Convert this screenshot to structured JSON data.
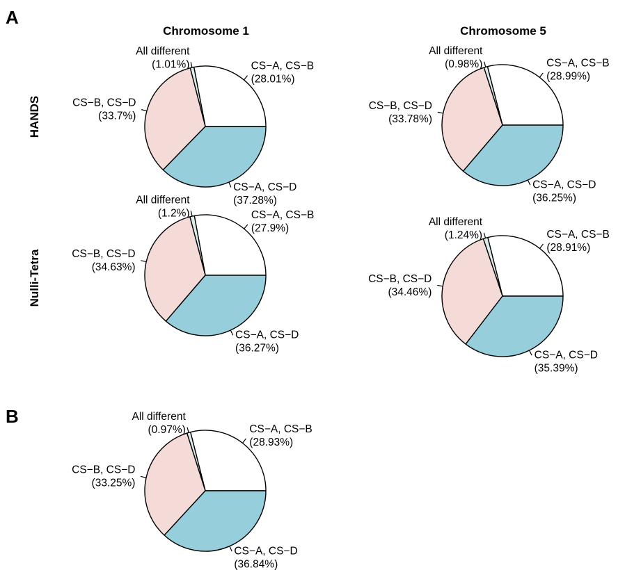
{
  "figure": {
    "panel_a_label": "A",
    "panel_b_label": "B",
    "column_titles": [
      "Chromosome 1",
      "Chromosome 5"
    ],
    "row_titles": [
      "HANDS",
      "Nulli-Tetra"
    ]
  },
  "colors": {
    "CS-A, CS-B": "#ffffff",
    "All different": "#dcecec",
    "CS-B, CS-D": "#f5dbd8",
    "CS-A, CS-D": "#97cedc"
  },
  "chart_data": [
    {
      "type": "pie",
      "panel": "A",
      "row": "HANDS",
      "column": "Chromosome 1",
      "slices": [
        {
          "label": "CS−A, CS−B",
          "value": 28.01,
          "value_text": "(28.01%)"
        },
        {
          "label": "All different",
          "value": 1.01,
          "value_text": "(1.01%)"
        },
        {
          "label": "CS−B, CS−D",
          "value": 33.7,
          "value_text": "(33.7%)"
        },
        {
          "label": "CS−A, CS−D",
          "value": 37.28,
          "value_text": "(37.28%)"
        }
      ]
    },
    {
      "type": "pie",
      "panel": "A",
      "row": "HANDS",
      "column": "Chromosome 5",
      "slices": [
        {
          "label": "CS−A, CS−B",
          "value": 28.99,
          "value_text": "(28.99%)"
        },
        {
          "label": "All different",
          "value": 0.98,
          "value_text": "(0.98%)"
        },
        {
          "label": "CS−B, CS−D",
          "value": 33.78,
          "value_text": "(33.78%)"
        },
        {
          "label": "CS−A, CS−D",
          "value": 36.25,
          "value_text": "(36.25%)"
        }
      ]
    },
    {
      "type": "pie",
      "panel": "A",
      "row": "Nulli-Tetra",
      "column": "Chromosome 1",
      "slices": [
        {
          "label": "CS−A, CS−B",
          "value": 27.9,
          "value_text": "(27.9%)"
        },
        {
          "label": "All different",
          "value": 1.2,
          "value_text": "(1.2%)"
        },
        {
          "label": "CS−B, CS−D",
          "value": 34.63,
          "value_text": "(34.63%)"
        },
        {
          "label": "CS−A, CS−D",
          "value": 36.27,
          "value_text": "(36.27%)"
        }
      ]
    },
    {
      "type": "pie",
      "panel": "A",
      "row": "Nulli-Tetra",
      "column": "Chromosome 5",
      "slices": [
        {
          "label": "CS−A, CS−B",
          "value": 28.91,
          "value_text": "(28.91%)"
        },
        {
          "label": "All different",
          "value": 1.24,
          "value_text": "(1.24%)"
        },
        {
          "label": "CS−B, CS−D",
          "value": 34.46,
          "value_text": "(34.46%)"
        },
        {
          "label": "CS−A, CS−D",
          "value": 35.39,
          "value_text": "(35.39%)"
        }
      ]
    },
    {
      "type": "pie",
      "panel": "B",
      "slices": [
        {
          "label": "CS−A, CS−B",
          "value": 28.93,
          "value_text": "(28.93%)"
        },
        {
          "label": "All different",
          "value": 0.97,
          "value_text": "(0.97%)"
        },
        {
          "label": "CS−B, CS−D",
          "value": 33.25,
          "value_text": "(33.25%)"
        },
        {
          "label": "CS−A, CS−D",
          "value": 36.84,
          "value_text": "(36.84%)"
        }
      ]
    }
  ]
}
